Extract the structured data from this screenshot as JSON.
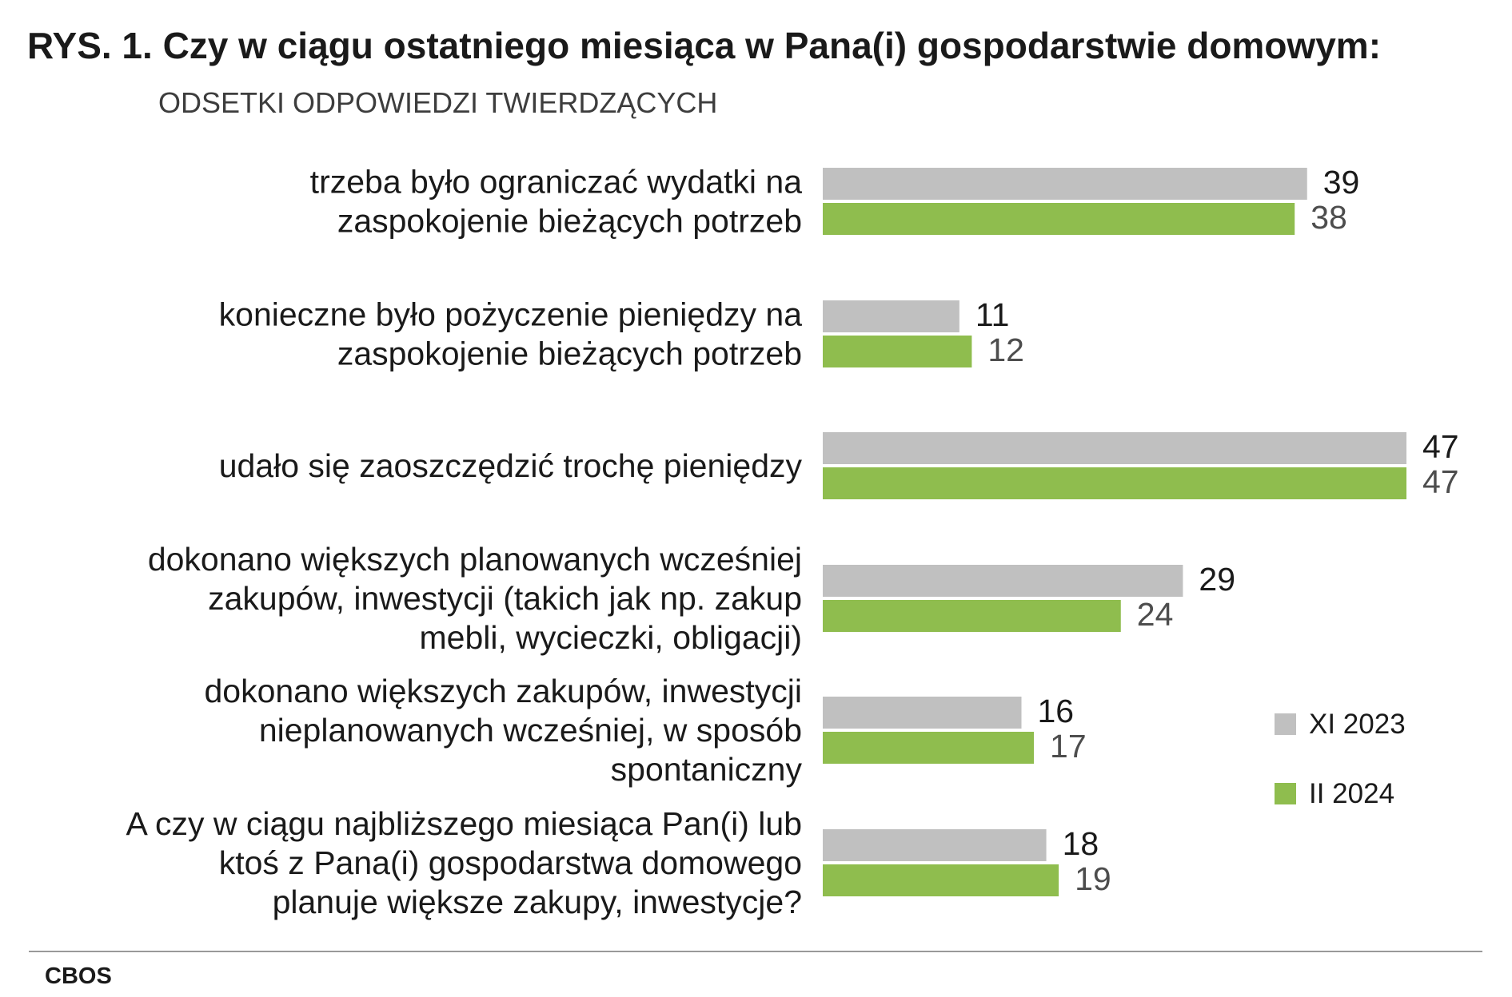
{
  "chart_data": {
    "type": "bar",
    "orientation": "horizontal",
    "title": "RYS. 1. Czy w ciągu ostatniego miesiąca w Pana(i) gospodarstwie domowym:",
    "subtitle": "ODSETKI ODPOWIEDZI TWIERDZĄCYCH",
    "categories": [
      [
        "trzeba było ograniczać wydatki na",
        "zaspokojenie bieżących potrzeb"
      ],
      [
        "konieczne było pożyczenie pieniędzy na",
        "zaspokojenie bieżących potrzeb"
      ],
      [
        "udało się zaoszczędzić trochę pieniędzy"
      ],
      [
        "dokonano większych planowanych wcześniej",
        "zakupów, inwestycji (takich jak np. zakup",
        "mebli, wycieczki, obligacji)"
      ],
      [
        "dokonano większych zakupów, inwestycji",
        "nieplanowanych wcześniej, w sposób",
        "spontaniczny"
      ],
      [
        "A czy w ciągu najbliższego miesiąca Pan(i) lub",
        "ktoś z Pana(i) gospodarstwa domowego",
        "planuje większe zakupy, inwestycje?"
      ]
    ],
    "series": [
      {
        "name": "XI 2023",
        "color": "#c0c0c0",
        "values": [
          39,
          11,
          47,
          29,
          16,
          18
        ]
      },
      {
        "name": "II 2024",
        "color": "#8fbd4e",
        "values": [
          38,
          12,
          47,
          24,
          17,
          19
        ]
      }
    ],
    "xlim": [
      0,
      47
    ],
    "legend_position": "right",
    "grid": false
  },
  "source": "CBOS"
}
